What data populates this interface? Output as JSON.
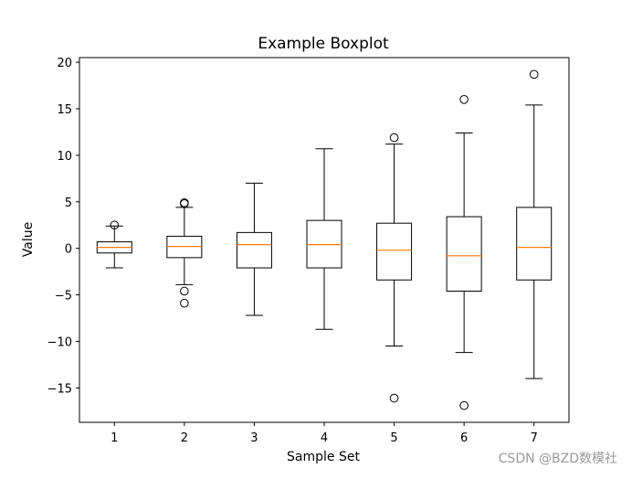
{
  "chart_data": {
    "type": "box",
    "title": "Example Boxplot",
    "xlabel": "Sample Set",
    "ylabel": "Value",
    "ylim": [
      -18.7,
      20.5
    ],
    "yticks": [
      20,
      15,
      10,
      5,
      0,
      -5,
      -10,
      -15
    ],
    "categories": [
      "1",
      "2",
      "3",
      "4",
      "5",
      "6",
      "7"
    ],
    "grid": false,
    "boxes": [
      {
        "label": "1",
        "whisker_low": -2.1,
        "q1": -0.5,
        "median": 0.1,
        "q3": 0.7,
        "whisker_high": 2.4,
        "outliers": [
          2.5
        ]
      },
      {
        "label": "2",
        "whisker_low": -3.9,
        "q1": -1.0,
        "median": 0.2,
        "q3": 1.3,
        "whisker_high": 4.4,
        "outliers": [
          4.9,
          4.8,
          -4.6,
          -5.9
        ]
      },
      {
        "label": "3",
        "whisker_low": -7.2,
        "q1": -2.1,
        "median": 0.4,
        "q3": 1.7,
        "whisker_high": 7.0,
        "outliers": []
      },
      {
        "label": "4",
        "whisker_low": -8.7,
        "q1": -2.1,
        "median": 0.4,
        "q3": 3.0,
        "whisker_high": 10.7,
        "outliers": []
      },
      {
        "label": "5",
        "whisker_low": -10.5,
        "q1": -3.4,
        "median": -0.2,
        "q3": 2.7,
        "whisker_high": 11.2,
        "outliers": [
          11.9,
          -16.1
        ]
      },
      {
        "label": "6",
        "whisker_low": -11.2,
        "q1": -4.6,
        "median": -0.8,
        "q3": 3.4,
        "whisker_high": 12.4,
        "outliers": [
          16.0,
          -16.9
        ]
      },
      {
        "label": "7",
        "whisker_low": -14.0,
        "q1": -3.4,
        "median": 0.1,
        "q3": 4.4,
        "whisker_high": 15.4,
        "outliers": [
          18.7
        ]
      }
    ],
    "colors": {
      "box": "#000000",
      "median": "#ff7f0e",
      "outlier": "#000000",
      "background": "#ffffff"
    }
  },
  "watermark": "CSDN @BZD数模社"
}
